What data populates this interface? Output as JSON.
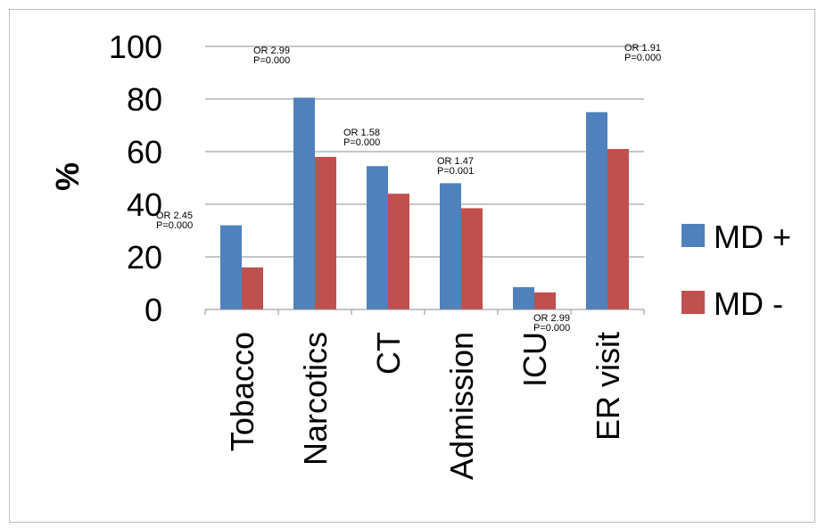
{
  "chart_data": {
    "type": "bar",
    "title": "",
    "xlabel": "",
    "ylabel": "%",
    "ylim": [
      0,
      100
    ],
    "yticks": [
      0,
      20,
      40,
      60,
      80,
      100
    ],
    "grid": true,
    "legend_position": "right",
    "categories": [
      "Tobacco",
      "Narcotics",
      "CT",
      "Admission",
      "ICU",
      "ER visit"
    ],
    "series": [
      {
        "name": "MD +",
        "color": "#4f81bd",
        "values": [
          32,
          80.5,
          54.5,
          48,
          8.5,
          75
        ]
      },
      {
        "name": "MD -",
        "color": "#c0504d",
        "values": [
          16,
          58,
          44,
          38.5,
          6.5,
          61
        ]
      }
    ],
    "annotations": [
      {
        "category": "Tobacco",
        "lines": [
          "OR 2.45",
          "P=0.000"
        ]
      },
      {
        "category": "Narcotics",
        "lines": [
          "OR 2.99",
          "P=0.000"
        ]
      },
      {
        "category": "CT",
        "lines": [
          "OR 1.58",
          "P=0.000"
        ]
      },
      {
        "category": "Admission",
        "lines": [
          "OR 1.47",
          "P=0.001"
        ]
      },
      {
        "category": "ICU",
        "lines": [
          "OR 2.99",
          "P=0.000"
        ]
      },
      {
        "category": "ER visit",
        "lines": [
          "OR 1.91",
          "P=0.000"
        ]
      }
    ]
  }
}
